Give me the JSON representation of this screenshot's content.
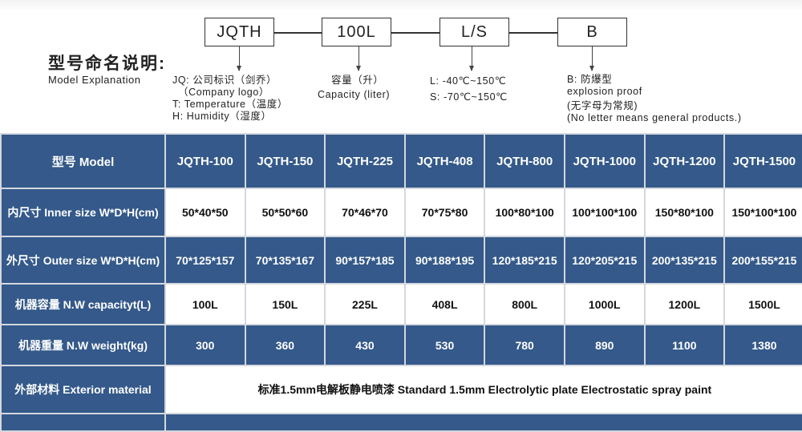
{
  "explanation": {
    "title_cn": "型号命名说明:",
    "title_en": "Model Explanation",
    "boxes": [
      "JQTH",
      "100L",
      "L/S",
      "B"
    ],
    "jq": [
      "JQ: 公司标识（剑乔）",
      "（Company logo）",
      "T: Temperature（温度）",
      "H: Humidity（湿度）"
    ],
    "cap": [
      "容量（升）",
      "Capacity (liter)"
    ],
    "temp": [
      "L: -40℃~150℃",
      "S: -70℃~150℃"
    ],
    "b": [
      "B: 防爆型",
      "explosion proof",
      "(无字母为常规)",
      "(No letter means general products.)"
    ]
  },
  "table": {
    "header": "型号 Model",
    "models": [
      "JQTH-100",
      "JQTH-150",
      "JQTH-225",
      "JQTH-408",
      "JQTH-800",
      "JQTH-1000",
      "JQTH-1200",
      "JQTH-1500"
    ],
    "rows": [
      {
        "label": "内尺寸 Inner size W*D*H(cm)",
        "values": [
          "50*40*50",
          "50*50*60",
          "70*46*70",
          "70*75*80",
          "100*80*100",
          "100*100*100",
          "150*80*100",
          "150*100*100"
        ]
      },
      {
        "label": "外尺寸 Outer size W*D*H(cm)",
        "values": [
          "70*125*157",
          "70*135*167",
          "90*157*185",
          "90*188*195",
          "120*185*215",
          "120*205*215",
          "200*135*215",
          "200*155*215"
        ]
      },
      {
        "label": "机器容量 N.W capacityt(L)",
        "values": [
          "100L",
          "150L",
          "225L",
          "408L",
          "800L",
          "1000L",
          "1200L",
          "1500L"
        ]
      },
      {
        "label": "机器重量 N.W weight(kg)",
        "values": [
          "300",
          "360",
          "430",
          "530",
          "780",
          "890",
          "1100",
          "1380"
        ]
      }
    ],
    "exterior_label": "外部材料 Exterior material",
    "exterior_value": "标准1.5mm电解板静电喷漆  Standard 1.5mm Electrolytic plate Electrostatic spray paint"
  },
  "colors": {
    "header_blue": "#34598a",
    "grid": "#d4d8de"
  }
}
